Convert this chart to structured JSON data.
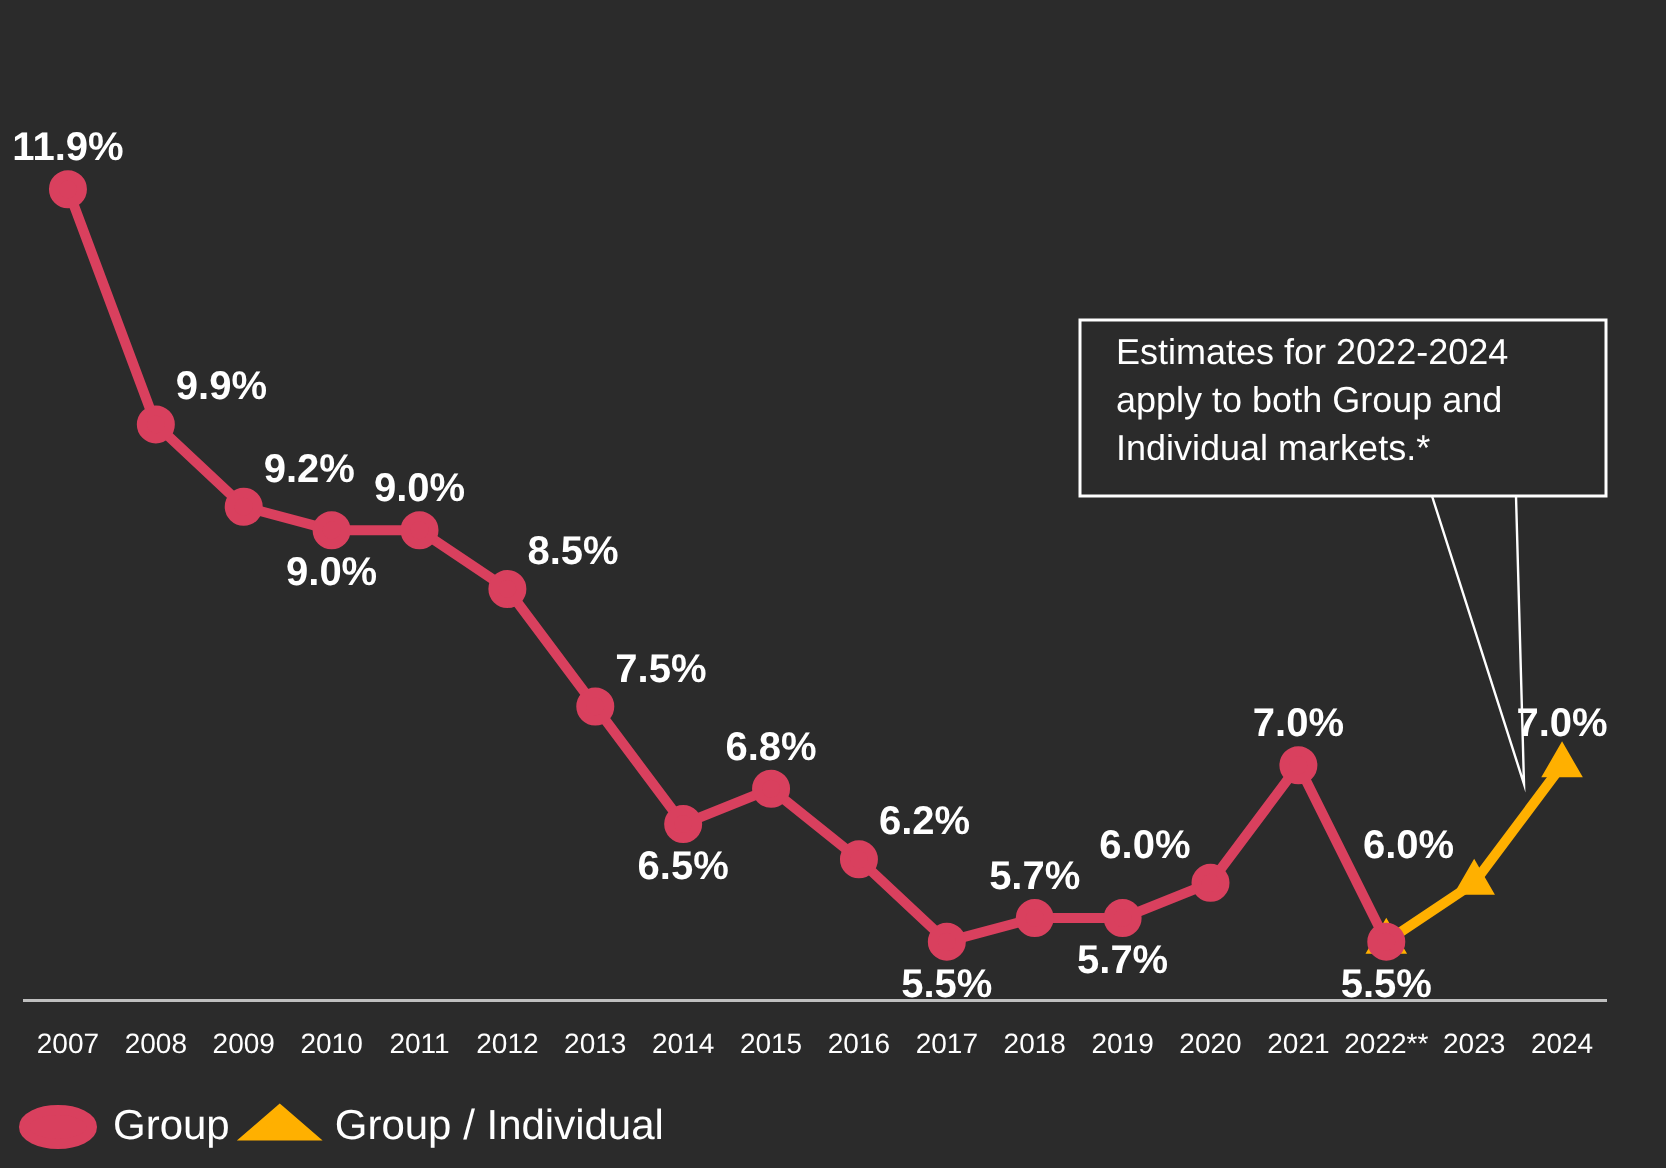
{
  "chart_data": {
    "type": "line",
    "categories": [
      "2007",
      "2008",
      "2009",
      "2010",
      "2011",
      "2012",
      "2013",
      "2014",
      "2015",
      "2016",
      "2017",
      "2018",
      "2019",
      "2020",
      "2021",
      "2022**",
      "2023",
      "2024"
    ],
    "series": [
      {
        "name": "Group",
        "color": "#d9405e",
        "marker": "circle",
        "values": [
          11.9,
          9.9,
          9.2,
          9.0,
          9.0,
          8.5,
          7.5,
          6.5,
          6.8,
          6.2,
          5.5,
          5.7,
          5.7,
          6.0,
          7.0,
          5.5,
          null,
          null
        ],
        "value_labels": [
          "11.9%",
          "9.9%",
          "9.2%",
          "9.0%",
          "9.0%",
          "8.5%",
          "7.5%",
          "6.5%",
          "6.8%",
          "6.2%",
          "5.5%",
          "5.7%",
          "5.7%",
          "6.0%",
          "7.0%",
          null,
          null,
          null
        ]
      },
      {
        "name": "Group / Individual",
        "color": "#ffb000",
        "marker": "triangle",
        "values": [
          null,
          null,
          null,
          null,
          null,
          null,
          null,
          null,
          null,
          null,
          null,
          null,
          null,
          null,
          null,
          5.5,
          6.0,
          7.0
        ],
        "value_labels": [
          null,
          null,
          null,
          null,
          null,
          null,
          null,
          null,
          null,
          null,
          null,
          null,
          null,
          null,
          null,
          "5.5%",
          "6.0%",
          "7.0%"
        ]
      }
    ],
    "grid": false,
    "legend": "bottom left",
    "tick_labels": "x",
    "annotations": [
      "Estimates for 2022-2024 apply to both Group and Individual markets.*"
    ]
  }
}
